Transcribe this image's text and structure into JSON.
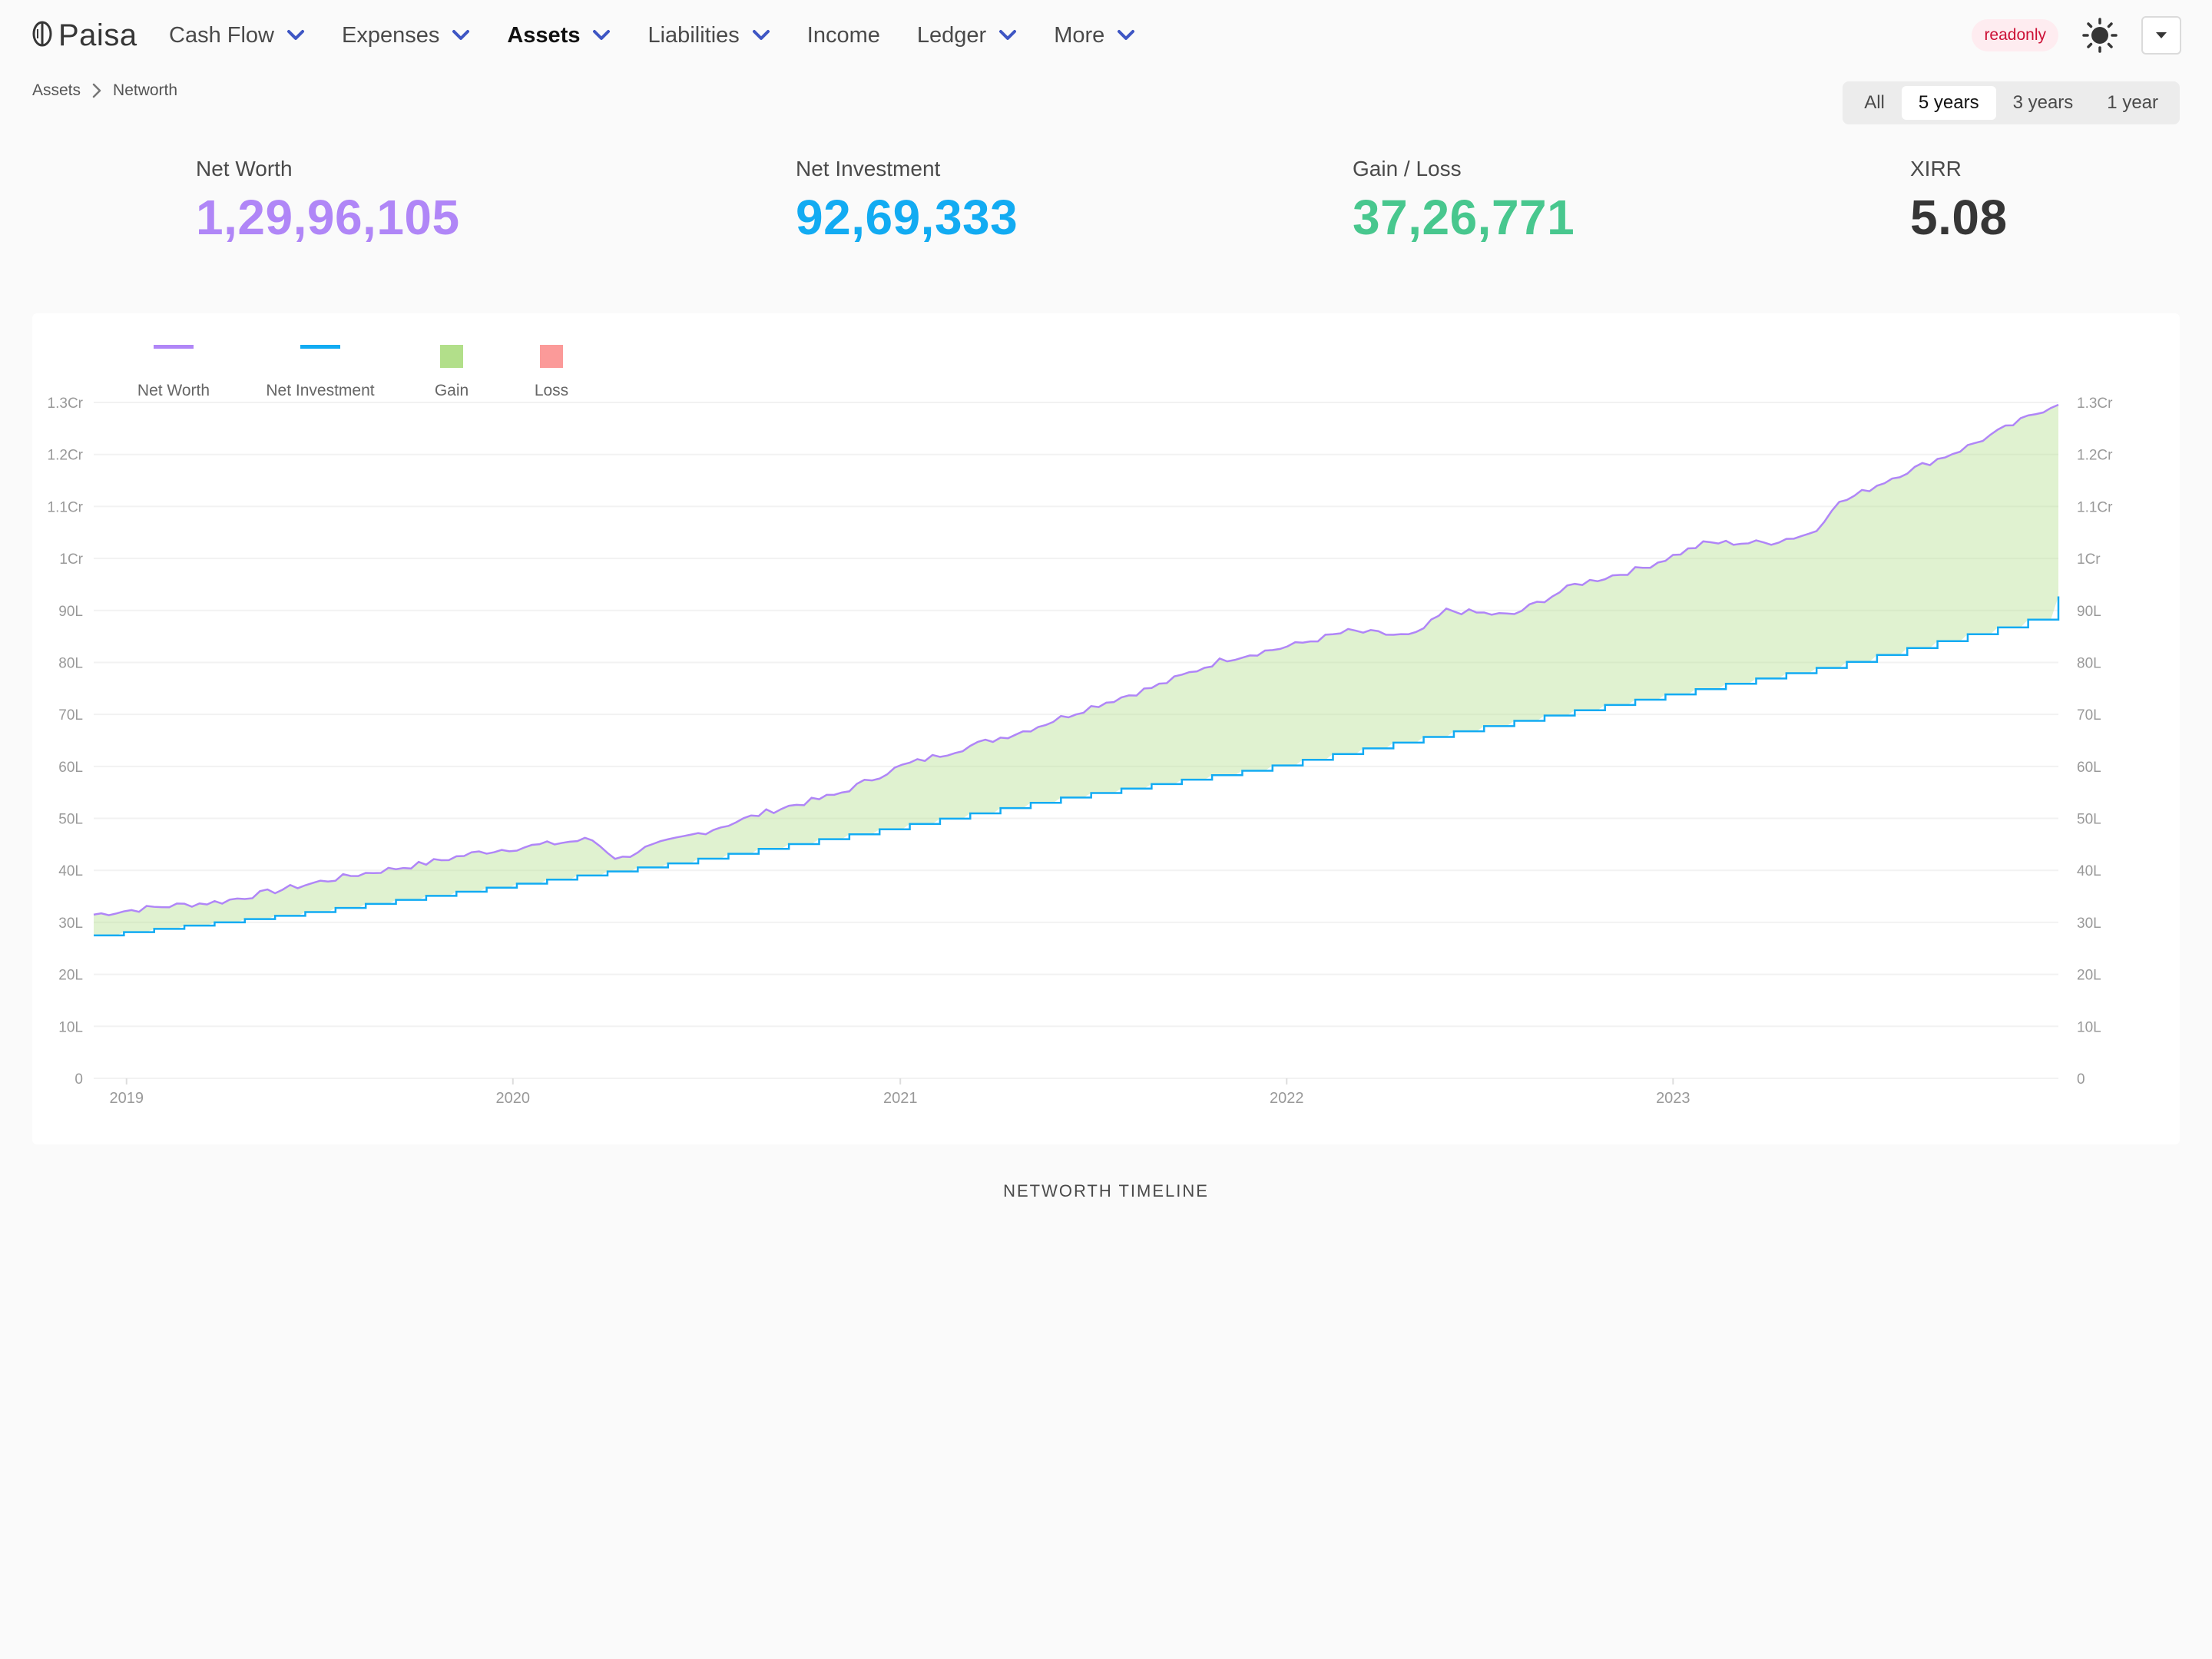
{
  "brand": {
    "name": "Paisa"
  },
  "nav": {
    "items": [
      {
        "label": "Cash Flow",
        "dropdown": true,
        "active": false
      },
      {
        "label": "Expenses",
        "dropdown": true,
        "active": false
      },
      {
        "label": "Assets",
        "dropdown": true,
        "active": true
      },
      {
        "label": "Liabilities",
        "dropdown": true,
        "active": false
      },
      {
        "label": "Income",
        "dropdown": false,
        "active": false
      },
      {
        "label": "Ledger",
        "dropdown": true,
        "active": false
      },
      {
        "label": "More",
        "dropdown": true,
        "active": false
      }
    ],
    "readonly_tag": "readonly"
  },
  "breadcrumb": [
    "Assets",
    "Networth"
  ],
  "range_tabs": {
    "options": [
      "All",
      "5 years",
      "3 years",
      "1 year"
    ],
    "selected": "5 years"
  },
  "stats": {
    "net_worth": {
      "label": "Net Worth",
      "value": "1,29,96,105",
      "color": "#b086f7"
    },
    "net_investment": {
      "label": "Net Investment",
      "value": "92,69,333",
      "color": "#12abf2"
    },
    "gain_loss": {
      "label": "Gain / Loss",
      "value": "37,26,771",
      "color": "#48c78e"
    },
    "xirr": {
      "label": "XIRR",
      "value": "5.08",
      "color": "#363636"
    }
  },
  "chart_caption": "NETWORTH TIMELINE",
  "colors": {
    "net_worth": "#b086f7",
    "net_investment": "#12abf2",
    "gain_fill": "#b2df8a",
    "loss_fill": "#fb9a99",
    "accent_chevron": "#3e56c4"
  },
  "chart_data": {
    "type": "area",
    "legend": [
      "Net Worth",
      "Net Investment",
      "Gain",
      "Loss"
    ],
    "legend_position": "top-left",
    "x_ticks": [
      "2019",
      "2020",
      "2021",
      "2022",
      "2023"
    ],
    "x_range": [
      "2018-12-01",
      "2023-12-31"
    ],
    "y_ticks": [
      "0",
      "10L",
      "20L",
      "30L",
      "40L",
      "50L",
      "60L",
      "70L",
      "80L",
      "90L",
      "1Cr",
      "1.1Cr",
      "1.2Cr",
      "1.3Cr"
    ],
    "y_range_lakh": [
      0,
      130
    ],
    "grid": true,
    "series": [
      {
        "name": "Net Worth",
        "points_lakh": [
          [
            "2018-12-01",
            31.5
          ],
          [
            "2019-02-01",
            33
          ],
          [
            "2019-04-01",
            34
          ],
          [
            "2019-06-01",
            36.5
          ],
          [
            "2019-08-01",
            39
          ],
          [
            "2019-10-01",
            41
          ],
          [
            "2019-12-01",
            43.5
          ],
          [
            "2020-02-01",
            45
          ],
          [
            "2020-03-15",
            46
          ],
          [
            "2020-04-10",
            42
          ],
          [
            "2020-05-01",
            44
          ],
          [
            "2020-07-01",
            47.5
          ],
          [
            "2020-09-01",
            51.5
          ],
          [
            "2020-11-01",
            54.5
          ],
          [
            "2021-01-01",
            60
          ],
          [
            "2021-03-01",
            63.5
          ],
          [
            "2021-05-01",
            67
          ],
          [
            "2021-07-01",
            71.5
          ],
          [
            "2021-09-01",
            75.5
          ],
          [
            "2021-11-01",
            80.5
          ],
          [
            "2022-01-01",
            83
          ],
          [
            "2022-03-01",
            86
          ],
          [
            "2022-05-01",
            85
          ],
          [
            "2022-06-01",
            90
          ],
          [
            "2022-08-01",
            89
          ],
          [
            "2022-10-01",
            95
          ],
          [
            "2022-12-01",
            98
          ],
          [
            "2023-02-01",
            103
          ],
          [
            "2023-04-01",
            103
          ],
          [
            "2023-05-15",
            105
          ],
          [
            "2023-06-01",
            110
          ],
          [
            "2023-08-01",
            116
          ],
          [
            "2023-10-01",
            121
          ],
          [
            "2023-12-01",
            127
          ],
          [
            "2023-12-31",
            130
          ]
        ]
      },
      {
        "name": "Net Investment",
        "points_lakh": [
          [
            "2018-12-01",
            27.5
          ],
          [
            "2019-06-01",
            31.5
          ],
          [
            "2019-12-01",
            36.5
          ],
          [
            "2020-06-01",
            41.5
          ],
          [
            "2020-12-01",
            47.5
          ],
          [
            "2021-06-01",
            54
          ],
          [
            "2021-12-01",
            59.5
          ],
          [
            "2022-06-01",
            66.5
          ],
          [
            "2022-12-01",
            73
          ],
          [
            "2023-06-01",
            79.5
          ],
          [
            "2023-12-01",
            88
          ],
          [
            "2023-12-31",
            92.7
          ]
        ]
      }
    ]
  }
}
